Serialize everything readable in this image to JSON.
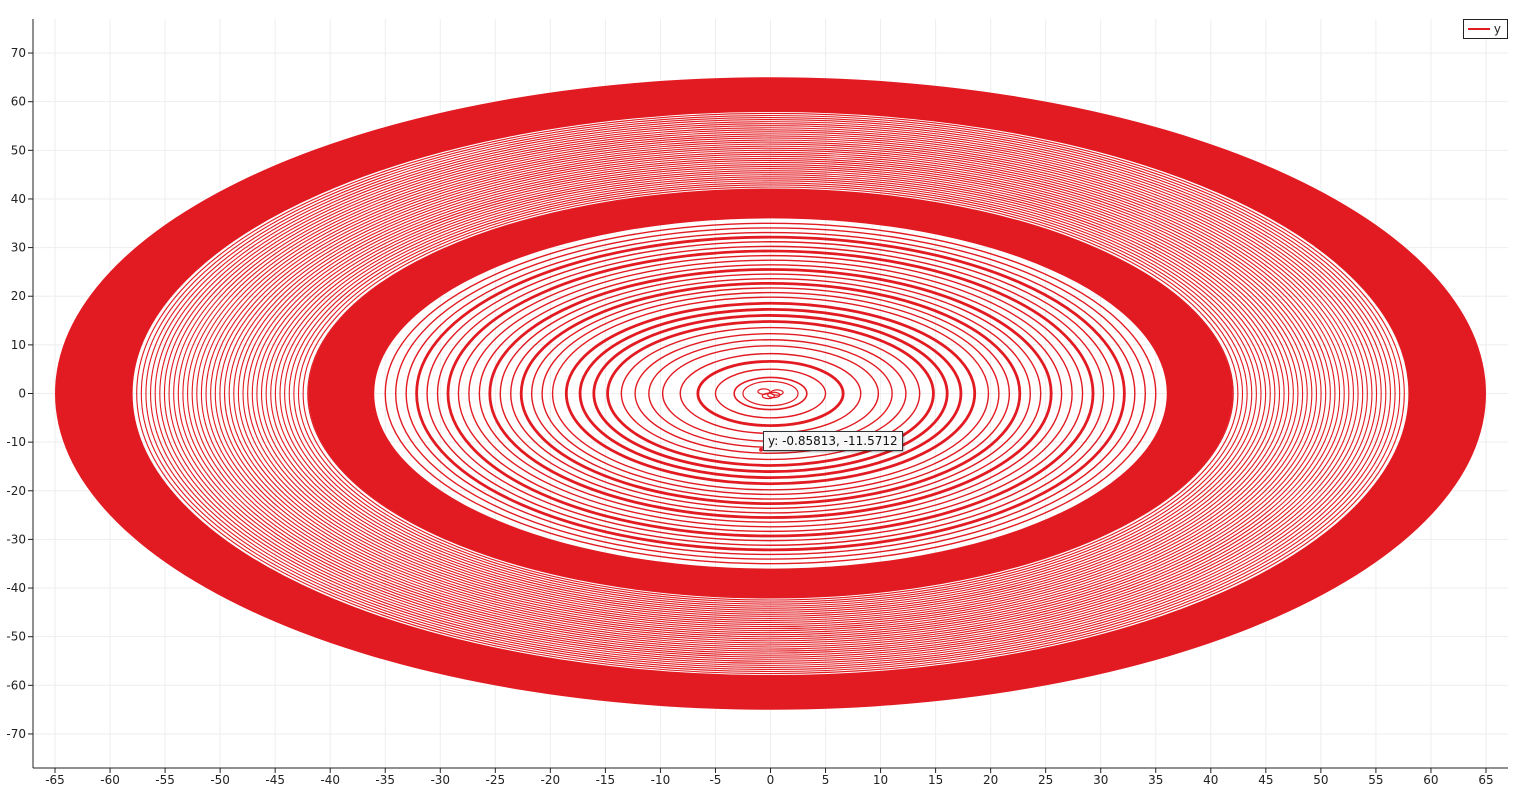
{
  "chart_data": {
    "type": "line",
    "title": "",
    "xlabel": "",
    "ylabel": "",
    "xlim": [
      -67,
      67
    ],
    "ylim": [
      -77,
      77
    ],
    "x_ticks": [
      -65,
      -60,
      -55,
      -50,
      -45,
      -40,
      -35,
      -30,
      -25,
      -20,
      -15,
      -10,
      -5,
      0,
      5,
      10,
      15,
      20,
      25,
      30,
      35,
      40,
      45,
      50,
      55,
      60,
      65
    ],
    "y_ticks": [
      -70,
      -60,
      -50,
      -40,
      -30,
      -20,
      -10,
      0,
      10,
      20,
      30,
      40,
      50,
      60,
      70
    ],
    "grid": true,
    "legend_position": "top-right",
    "series": [
      {
        "name": "y",
        "color": "#e21b22",
        "shape": "spiral",
        "outer_radius": 65,
        "dense_band_outer": 65,
        "dense_band_inner": 55,
        "middle_band_outer": 42,
        "middle_band_inner": 35,
        "sparse_inner_max": 32
      }
    ],
    "tooltip": {
      "text": "y: -0.85813,  -11.5712",
      "x": -0.85813,
      "y": -11.5712
    }
  },
  "legend": {
    "label": "y",
    "color": "#e21b22"
  }
}
